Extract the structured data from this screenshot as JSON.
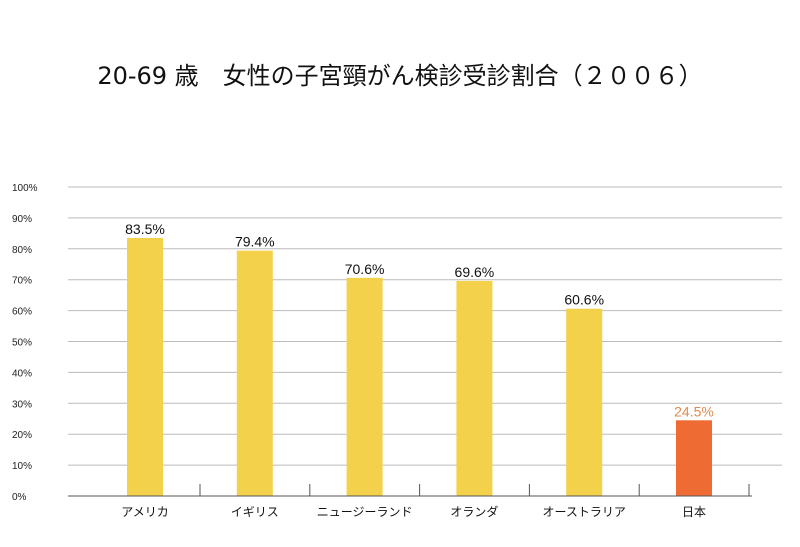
{
  "chart_data": {
    "type": "bar",
    "title": "20-69 歳　女性の子宮頸がん検診受診割合（２００６）",
    "xlabel": "",
    "ylabel": "",
    "ylim": [
      0,
      100
    ],
    "yticks": [
      "0%",
      "10%",
      "20%",
      "30%",
      "40%",
      "50%",
      "60%",
      "70%",
      "80%",
      "90%",
      "100%"
    ],
    "grid": true,
    "categories": [
      "アメリカ",
      "イギリス",
      "ニュージーランド",
      "オランダ",
      "オーストラリア",
      "日本"
    ],
    "values": [
      83.5,
      79.4,
      70.6,
      69.6,
      60.6,
      24.5
    ],
    "data_labels": [
      "83.5%",
      "79.4%",
      "70.6%",
      "69.6%",
      "60.6%",
      "24.5%"
    ],
    "bar_colors": [
      "#F4D14B",
      "#F4D14B",
      "#F4D14B",
      "#F4D14B",
      "#F4D14B",
      "#EE6C34"
    ],
    "label_colors": [
      "#111111",
      "#111111",
      "#111111",
      "#111111",
      "#111111",
      "#E08A4E"
    ],
    "grid_color": "#BBBBBB",
    "axis_color": "#555555"
  }
}
